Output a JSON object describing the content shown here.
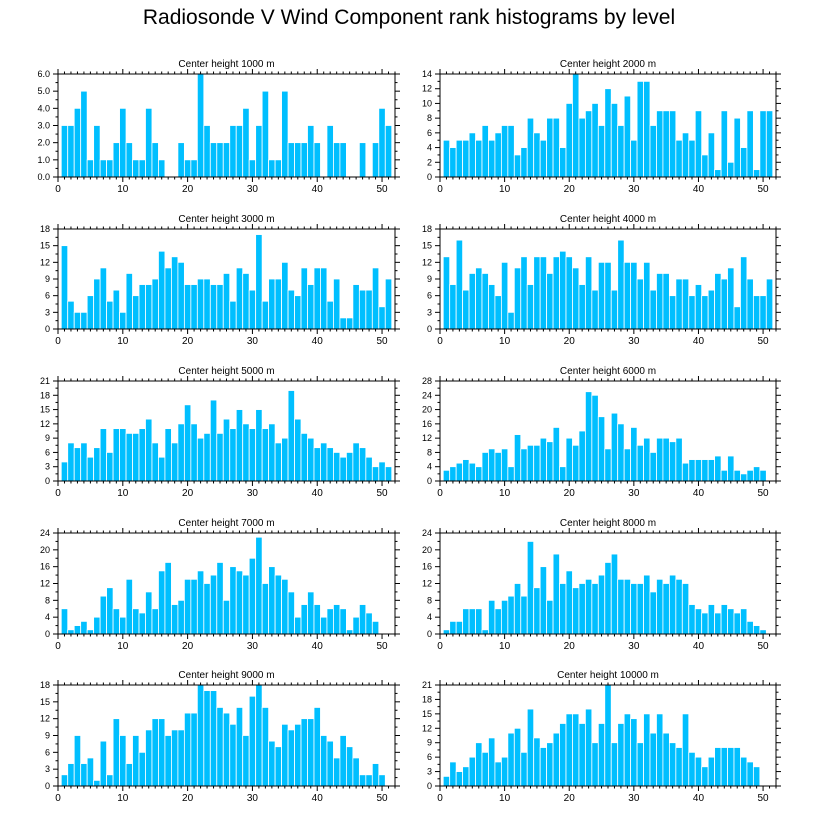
{
  "title": "Radiosonde V Wind Component rank histograms by level",
  "colors": {
    "bar": "#00bfff",
    "bar_edge": "#ffffff",
    "axis": "#000000"
  },
  "chart_data": [
    {
      "type": "bar",
      "title": "Center height 1000 m",
      "xlim": [
        0,
        52
      ],
      "ylim": [
        0,
        6
      ],
      "xticks": [
        0,
        10,
        20,
        30,
        40,
        50
      ],
      "yticks": [
        0,
        1,
        2,
        3,
        4,
        5,
        6
      ],
      "ytick_labels": [
        "0.0",
        "1.0",
        "2.0",
        "3.0",
        "4.0",
        "5.0",
        "6.0"
      ],
      "values": [
        0,
        3,
        3,
        4,
        5,
        1,
        3,
        1,
        1,
        2,
        4,
        2,
        1,
        1,
        4,
        2,
        1,
        0,
        0,
        2,
        1,
        1,
        6,
        3,
        2,
        2,
        2,
        3,
        3,
        4,
        1,
        3,
        5,
        1,
        1,
        5,
        2,
        2,
        2,
        3,
        2,
        0,
        3,
        2,
        2,
        0,
        0,
        2,
        0,
        2,
        4,
        3
      ]
    },
    {
      "type": "bar",
      "title": "Center height 2000 m",
      "xlim": [
        0,
        52
      ],
      "ylim": [
        0,
        14
      ],
      "xticks": [
        0,
        10,
        20,
        30,
        40,
        50
      ],
      "yticks": [
        0,
        2,
        4,
        6,
        8,
        10,
        12,
        14
      ],
      "ytick_labels": [
        "0",
        "2",
        "4",
        "6",
        "8",
        "10",
        "12",
        "14"
      ],
      "values": [
        0,
        5,
        4,
        5,
        5,
        6,
        5,
        7,
        5,
        6,
        7,
        7,
        3,
        4,
        8,
        6,
        5,
        8,
        8,
        4,
        10,
        14,
        8,
        9,
        10,
        7,
        12,
        10,
        7,
        11,
        5,
        13,
        13,
        7,
        9,
        9,
        9,
        5,
        6,
        5,
        9,
        3,
        6,
        1,
        9,
        2,
        8,
        4,
        9,
        1,
        9,
        9
      ]
    },
    {
      "type": "bar",
      "title": "Center height 3000 m",
      "xlim": [
        0,
        52
      ],
      "ylim": [
        0,
        18
      ],
      "xticks": [
        0,
        10,
        20,
        30,
        40,
        50
      ],
      "yticks": [
        0,
        3,
        6,
        9,
        12,
        15,
        18
      ],
      "ytick_labels": [
        "0",
        "3",
        "6",
        "9",
        "12",
        "15",
        "18"
      ],
      "values": [
        0,
        15,
        5,
        3,
        3,
        6,
        9,
        11,
        5,
        7,
        3,
        10,
        6,
        8,
        8,
        9,
        14,
        11,
        13,
        12,
        8,
        8,
        9,
        9,
        8,
        8,
        10,
        5,
        11,
        10,
        7,
        17,
        5,
        9,
        9,
        12,
        7,
        6,
        11,
        8,
        11,
        11,
        5,
        9,
        2,
        2,
        8,
        7,
        7,
        11,
        4,
        9
      ]
    },
    {
      "type": "bar",
      "title": "Center height 4000 m",
      "xlim": [
        0,
        52
      ],
      "ylim": [
        0,
        18
      ],
      "xticks": [
        0,
        10,
        20,
        30,
        40,
        50
      ],
      "yticks": [
        0,
        3,
        6,
        9,
        12,
        15,
        18
      ],
      "ytick_labels": [
        "0",
        "3",
        "6",
        "9",
        "12",
        "15",
        "18"
      ],
      "values": [
        0,
        13,
        8,
        16,
        7,
        10,
        11,
        10,
        8,
        6,
        12,
        3,
        11,
        13,
        8,
        13,
        13,
        10,
        13,
        14,
        13,
        11,
        8,
        13,
        7,
        12,
        12,
        7,
        16,
        12,
        12,
        9,
        12,
        7,
        10,
        10,
        6,
        9,
        9,
        6,
        8,
        6,
        7,
        10,
        9,
        11,
        4,
        13,
        9,
        6,
        6,
        9
      ]
    },
    {
      "type": "bar",
      "title": "Center height 5000 m",
      "xlim": [
        0,
        52
      ],
      "ylim": [
        0,
        21
      ],
      "xticks": [
        0,
        10,
        20,
        30,
        40,
        50
      ],
      "yticks": [
        0,
        3,
        6,
        9,
        12,
        15,
        18,
        21
      ],
      "ytick_labels": [
        "0",
        "3",
        "6",
        "9",
        "12",
        "15",
        "18",
        "21"
      ],
      "values": [
        0,
        4,
        8,
        7,
        8,
        5,
        7,
        11,
        6,
        11,
        11,
        10,
        10,
        11,
        13,
        8,
        5,
        11,
        8,
        12,
        16,
        12,
        9,
        10,
        17,
        10,
        13,
        11,
        15,
        12,
        11,
        15,
        11,
        12,
        8,
        9,
        19,
        13,
        10,
        9,
        7,
        8,
        7,
        6,
        5,
        6,
        8,
        7,
        5,
        3,
        4,
        3
      ]
    },
    {
      "type": "bar",
      "title": "Center height 6000 m",
      "xlim": [
        0,
        52
      ],
      "ylim": [
        0,
        28
      ],
      "xticks": [
        0,
        10,
        20,
        30,
        40,
        50
      ],
      "yticks": [
        0,
        4,
        8,
        12,
        16,
        20,
        24,
        28
      ],
      "ytick_labels": [
        "0",
        "4",
        "8",
        "12",
        "16",
        "20",
        "24",
        "28"
      ],
      "values": [
        0,
        3,
        4,
        5,
        6,
        5,
        4,
        8,
        9,
        8,
        9,
        4,
        13,
        9,
        10,
        10,
        12,
        11,
        15,
        4,
        12,
        10,
        14,
        25,
        24,
        18,
        9,
        19,
        16,
        9,
        15,
        10,
        12,
        8,
        12,
        12,
        11,
        12,
        5,
        6,
        6,
        6,
        6,
        7,
        3,
        7,
        3,
        2,
        3,
        4,
        3,
        0
      ]
    },
    {
      "type": "bar",
      "title": "Center height 7000 m",
      "xlim": [
        0,
        52
      ],
      "ylim": [
        0,
        24
      ],
      "xticks": [
        0,
        10,
        20,
        30,
        40,
        50
      ],
      "yticks": [
        0,
        4,
        8,
        12,
        16,
        20,
        24
      ],
      "ytick_labels": [
        "0",
        "4",
        "8",
        "12",
        "16",
        "20",
        "24"
      ],
      "values": [
        0,
        6,
        1,
        2,
        3,
        1,
        4,
        9,
        11,
        6,
        4,
        13,
        6,
        5,
        10,
        6,
        15,
        17,
        7,
        8,
        13,
        13,
        15,
        12,
        14,
        17,
        8,
        16,
        15,
        14,
        18,
        23,
        12,
        16,
        14,
        13,
        10,
        4,
        7,
        10,
        7,
        4,
        6,
        7,
        6,
        1,
        4,
        7,
        5,
        3,
        0,
        0
      ]
    },
    {
      "type": "bar",
      "title": "Center height 8000 m",
      "xlim": [
        0,
        52
      ],
      "ylim": [
        0,
        24
      ],
      "xticks": [
        0,
        10,
        20,
        30,
        40,
        50
      ],
      "yticks": [
        0,
        4,
        8,
        12,
        16,
        20,
        24
      ],
      "ytick_labels": [
        "0",
        "4",
        "8",
        "12",
        "16",
        "20",
        "24"
      ],
      "values": [
        0,
        1,
        3,
        3,
        6,
        6,
        6,
        1,
        8,
        6,
        8,
        9,
        12,
        9,
        22,
        11,
        16,
        8,
        19,
        12,
        15,
        11,
        12,
        13,
        12,
        14,
        17,
        19,
        13,
        13,
        12,
        12,
        14,
        10,
        13,
        12,
        14,
        13,
        12,
        7,
        6,
        5,
        7,
        5,
        7,
        6,
        5,
        6,
        3,
        2,
        1,
        0
      ]
    },
    {
      "type": "bar",
      "title": "Center height 9000 m",
      "xlim": [
        0,
        52
      ],
      "ylim": [
        0,
        18
      ],
      "xticks": [
        0,
        10,
        20,
        30,
        40,
        50
      ],
      "yticks": [
        0,
        3,
        6,
        9,
        12,
        15,
        18
      ],
      "ytick_labels": [
        "0",
        "3",
        "6",
        "9",
        "12",
        "15",
        "18"
      ],
      "values": [
        0,
        2,
        4,
        9,
        4,
        5,
        1,
        8,
        2,
        12,
        9,
        4,
        9,
        6,
        10,
        12,
        12,
        9,
        10,
        10,
        13,
        13,
        18,
        17,
        17,
        14,
        13,
        11,
        14,
        9,
        16,
        18,
        14,
        8,
        7,
        11,
        10,
        11,
        12,
        12,
        14,
        9,
        8,
        5,
        9,
        7,
        5,
        2,
        2,
        4,
        2,
        0
      ]
    },
    {
      "type": "bar",
      "title": "Center height 10000 m",
      "xlim": [
        0,
        52
      ],
      "ylim": [
        0,
        21
      ],
      "xticks": [
        0,
        10,
        20,
        30,
        40,
        50
      ],
      "yticks": [
        0,
        3,
        6,
        9,
        12,
        15,
        18,
        21
      ],
      "ytick_labels": [
        "0",
        "3",
        "6",
        "9",
        "12",
        "15",
        "18",
        "21"
      ],
      "values": [
        0,
        2,
        5,
        3,
        4,
        6,
        9,
        7,
        10,
        5,
        6,
        11,
        12,
        7,
        16,
        10,
        8,
        9,
        11,
        13,
        15,
        15,
        13,
        16,
        9,
        13,
        21,
        9,
        13,
        15,
        14,
        9,
        15,
        11,
        15,
        11,
        9,
        8,
        15,
        7,
        6,
        4,
        6,
        8,
        8,
        8,
        8,
        6,
        5,
        4,
        0,
        0
      ]
    }
  ]
}
